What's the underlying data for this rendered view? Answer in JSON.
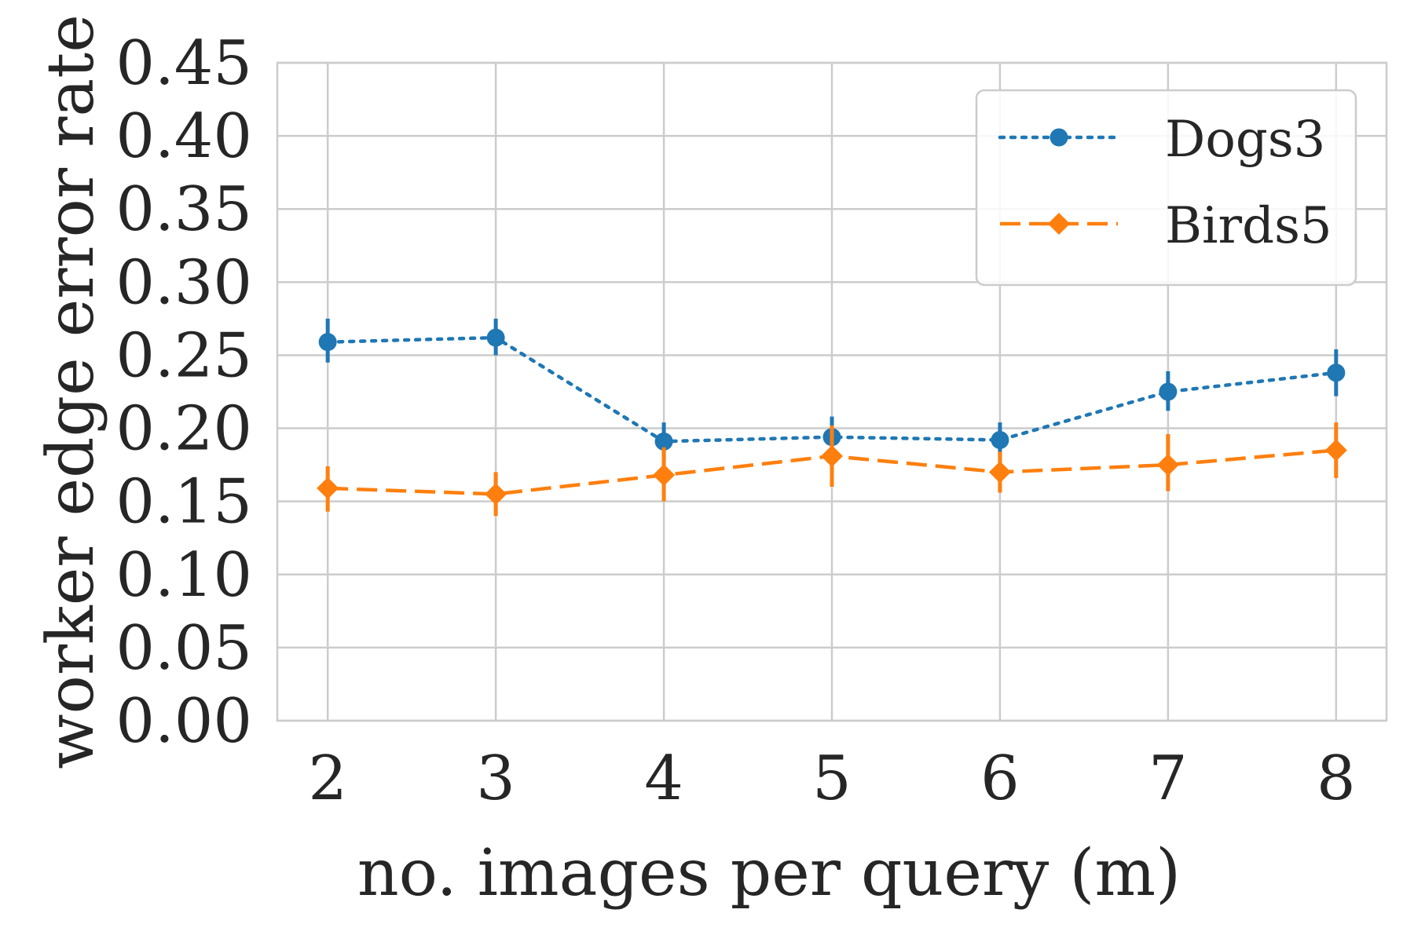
{
  "chart_data": {
    "type": "line",
    "title": "",
    "xlabel": "no. images per query (m)",
    "ylabel": "worker edge error rate",
    "x": [
      2,
      3,
      4,
      5,
      6,
      7,
      8
    ],
    "xlim": [
      1.7,
      8.3
    ],
    "ylim": [
      0.0,
      0.45
    ],
    "xticks": [
      "2",
      "3",
      "4",
      "5",
      "6",
      "7",
      "8"
    ],
    "yticks": [
      "0.00",
      "0.05",
      "0.10",
      "0.15",
      "0.20",
      "0.25",
      "0.30",
      "0.35",
      "0.40",
      "0.45"
    ],
    "grid": true,
    "legend_position": "top-right",
    "series": [
      {
        "name": "Dogs3",
        "color": "#1f77b4",
        "line_style": "dotted",
        "marker": "circle",
        "values": [
          0.259,
          0.262,
          0.191,
          0.194,
          0.192,
          0.225,
          0.238
        ],
        "error_low": [
          0.245,
          0.25,
          0.178,
          0.182,
          0.18,
          0.212,
          0.222
        ],
        "error_high": [
          0.275,
          0.275,
          0.204,
          0.208,
          0.204,
          0.239,
          0.254
        ]
      },
      {
        "name": "Birds5",
        "color": "#ff7f0e",
        "line_style": "dashed",
        "marker": "diamond",
        "values": [
          0.159,
          0.155,
          0.168,
          0.181,
          0.17,
          0.175,
          0.185
        ],
        "error_low": [
          0.143,
          0.14,
          0.15,
          0.16,
          0.156,
          0.157,
          0.166
        ],
        "error_high": [
          0.174,
          0.17,
          0.187,
          0.202,
          0.184,
          0.196,
          0.204
        ]
      }
    ]
  }
}
